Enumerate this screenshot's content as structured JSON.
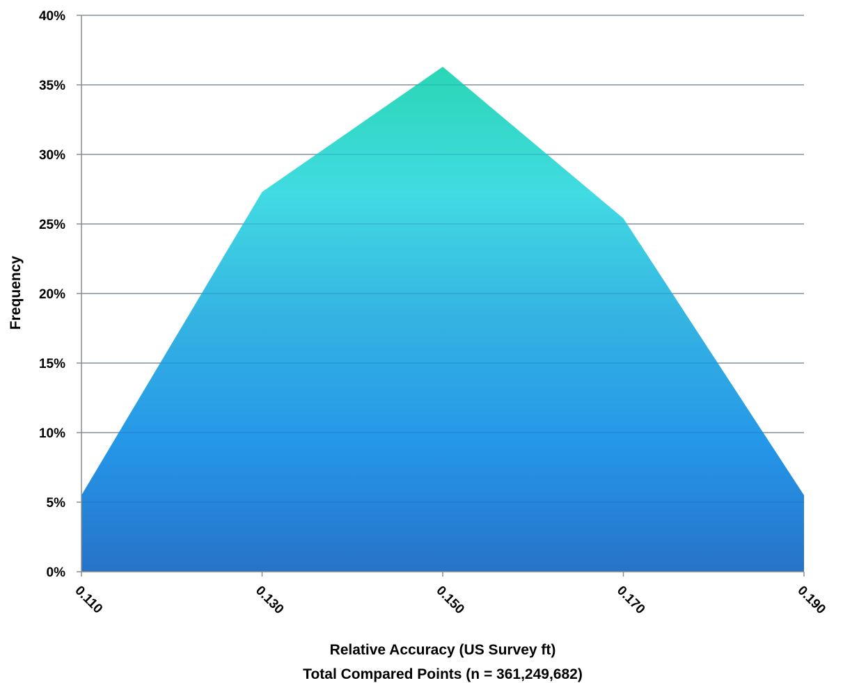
{
  "chart_data": {
    "type": "area",
    "x": [
      "0.110",
      "0.130",
      "0.150",
      "0.170",
      "0.190"
    ],
    "series": [
      {
        "values": [
          5.5,
          27.3,
          36.3,
          25.4,
          5.5
        ]
      }
    ],
    "xlabel_lines": [
      "Relative Accuracy (US Survey ft)",
      "Total Compared Points (n = 361,249,682)"
    ],
    "ylabel": "Frequency",
    "ylim": [
      0,
      40
    ],
    "yticks": [
      0,
      5,
      10,
      15,
      20,
      25,
      30,
      35,
      40
    ],
    "ytick_labels": [
      "0%",
      "5%",
      "10%",
      "15%",
      "20%",
      "25%",
      "30%",
      "35%",
      "40%"
    ],
    "grid": true,
    "legend": "none",
    "colors": {
      "fill_top": "#2ad6b4",
      "fill_upper": "#41dbe2",
      "fill_mid": "#34b3e2",
      "fill_lower": "#2596e8",
      "fill_bottom": "#2673c8",
      "grid": "#8c8c8c",
      "axis": "#8c8c8c"
    }
  }
}
